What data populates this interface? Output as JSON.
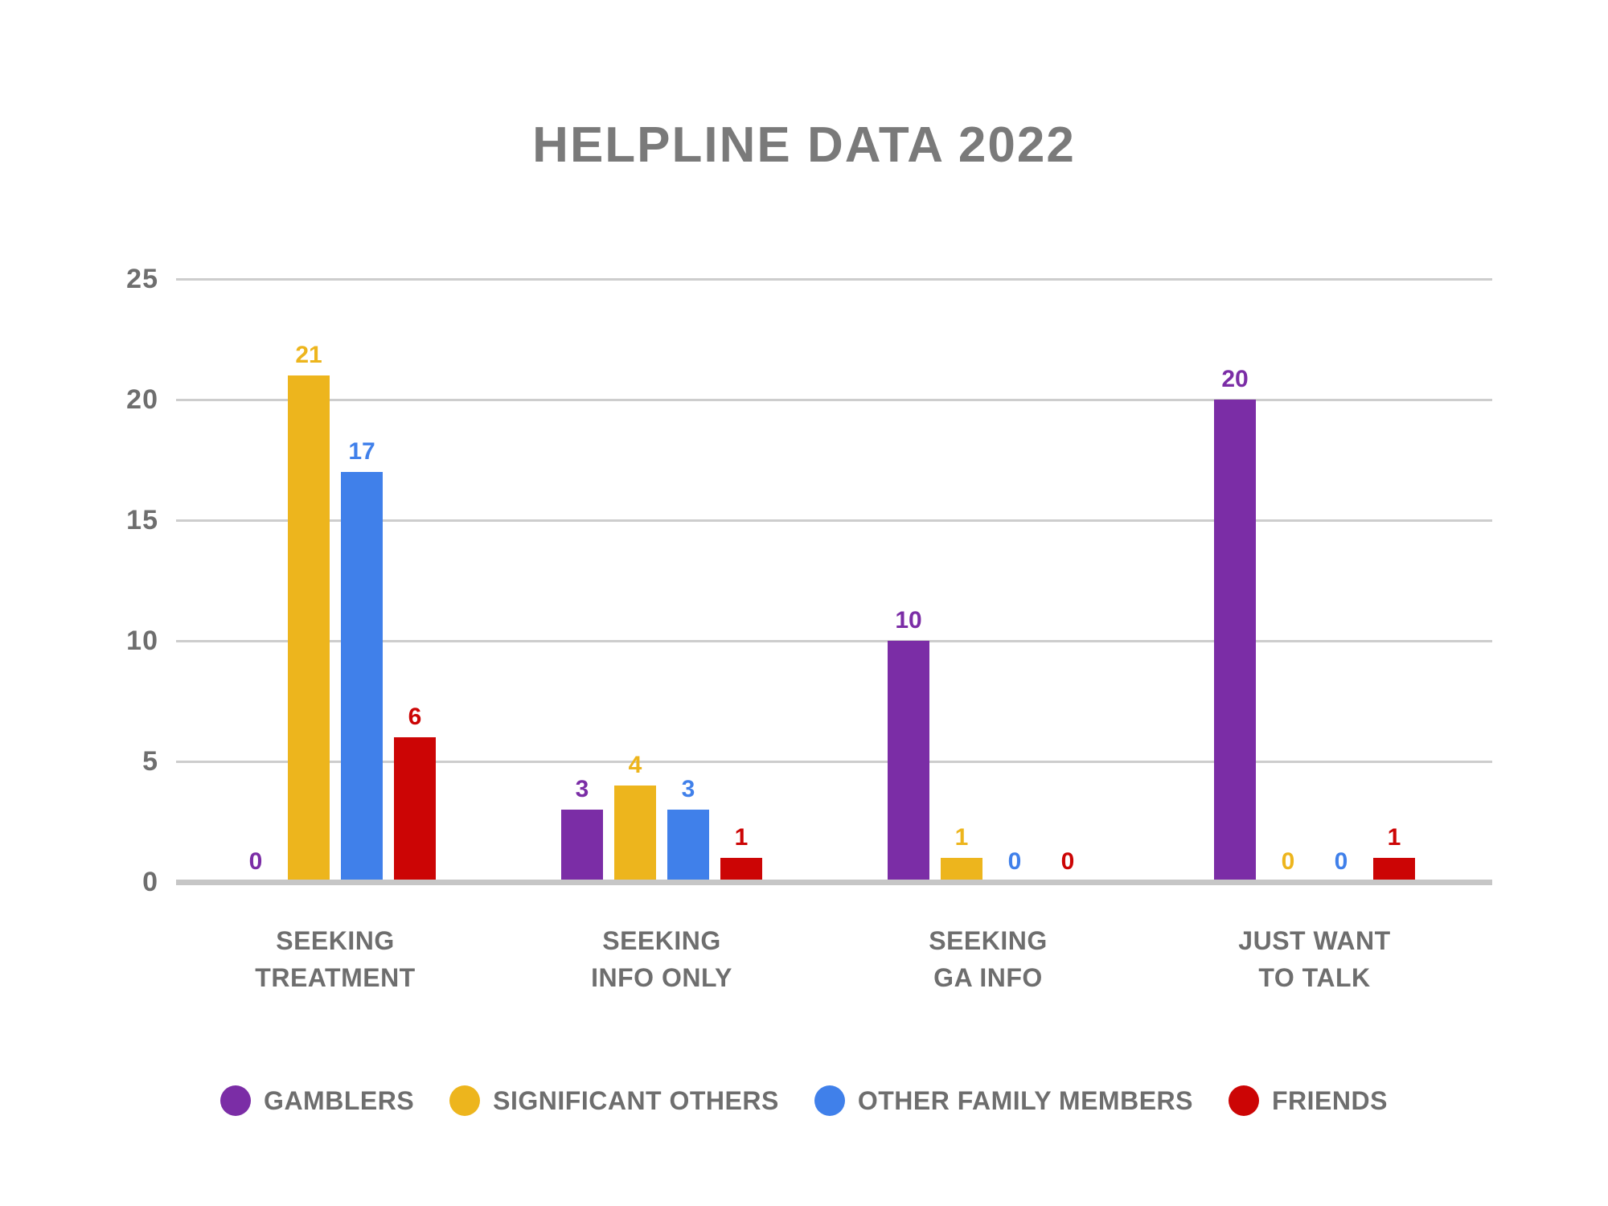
{
  "chart_data": {
    "type": "bar",
    "title": "HELPLINE DATA 2022",
    "xlabel": "",
    "ylabel": "",
    "ylim": [
      0,
      25
    ],
    "y_ticks": [
      0,
      5,
      10,
      15,
      20,
      25
    ],
    "grid": true,
    "legend_position": "bottom",
    "value_labels": true,
    "categories": [
      {
        "line1": "SEEKING",
        "line2": "TREATMENT"
      },
      {
        "line1": "SEEKING",
        "line2": "INFO ONLY"
      },
      {
        "line1": "SEEKING",
        "line2": "GA INFO"
      },
      {
        "line1": "JUST WANT",
        "line2": "TO TALK"
      }
    ],
    "series": [
      {
        "name": "GAMBLERS",
        "color": "#7B2DA6",
        "values": [
          0,
          3,
          10,
          20
        ]
      },
      {
        "name": "SIGNIFICANT OTHERS",
        "color": "#EDB51D",
        "values": [
          21,
          4,
          1,
          0
        ]
      },
      {
        "name": "OTHER FAMILY MEMBERS",
        "color": "#4080EA",
        "values": [
          17,
          3,
          0,
          0
        ]
      },
      {
        "name": "FRIENDS",
        "color": "#CC0505",
        "values": [
          6,
          1,
          0,
          1
        ]
      }
    ],
    "colors": {
      "title_text": "#7A7A7A",
      "label_text": "#6E6E6E",
      "gridline": "#CDCDCD",
      "baseline": "#C6C6C6"
    }
  }
}
